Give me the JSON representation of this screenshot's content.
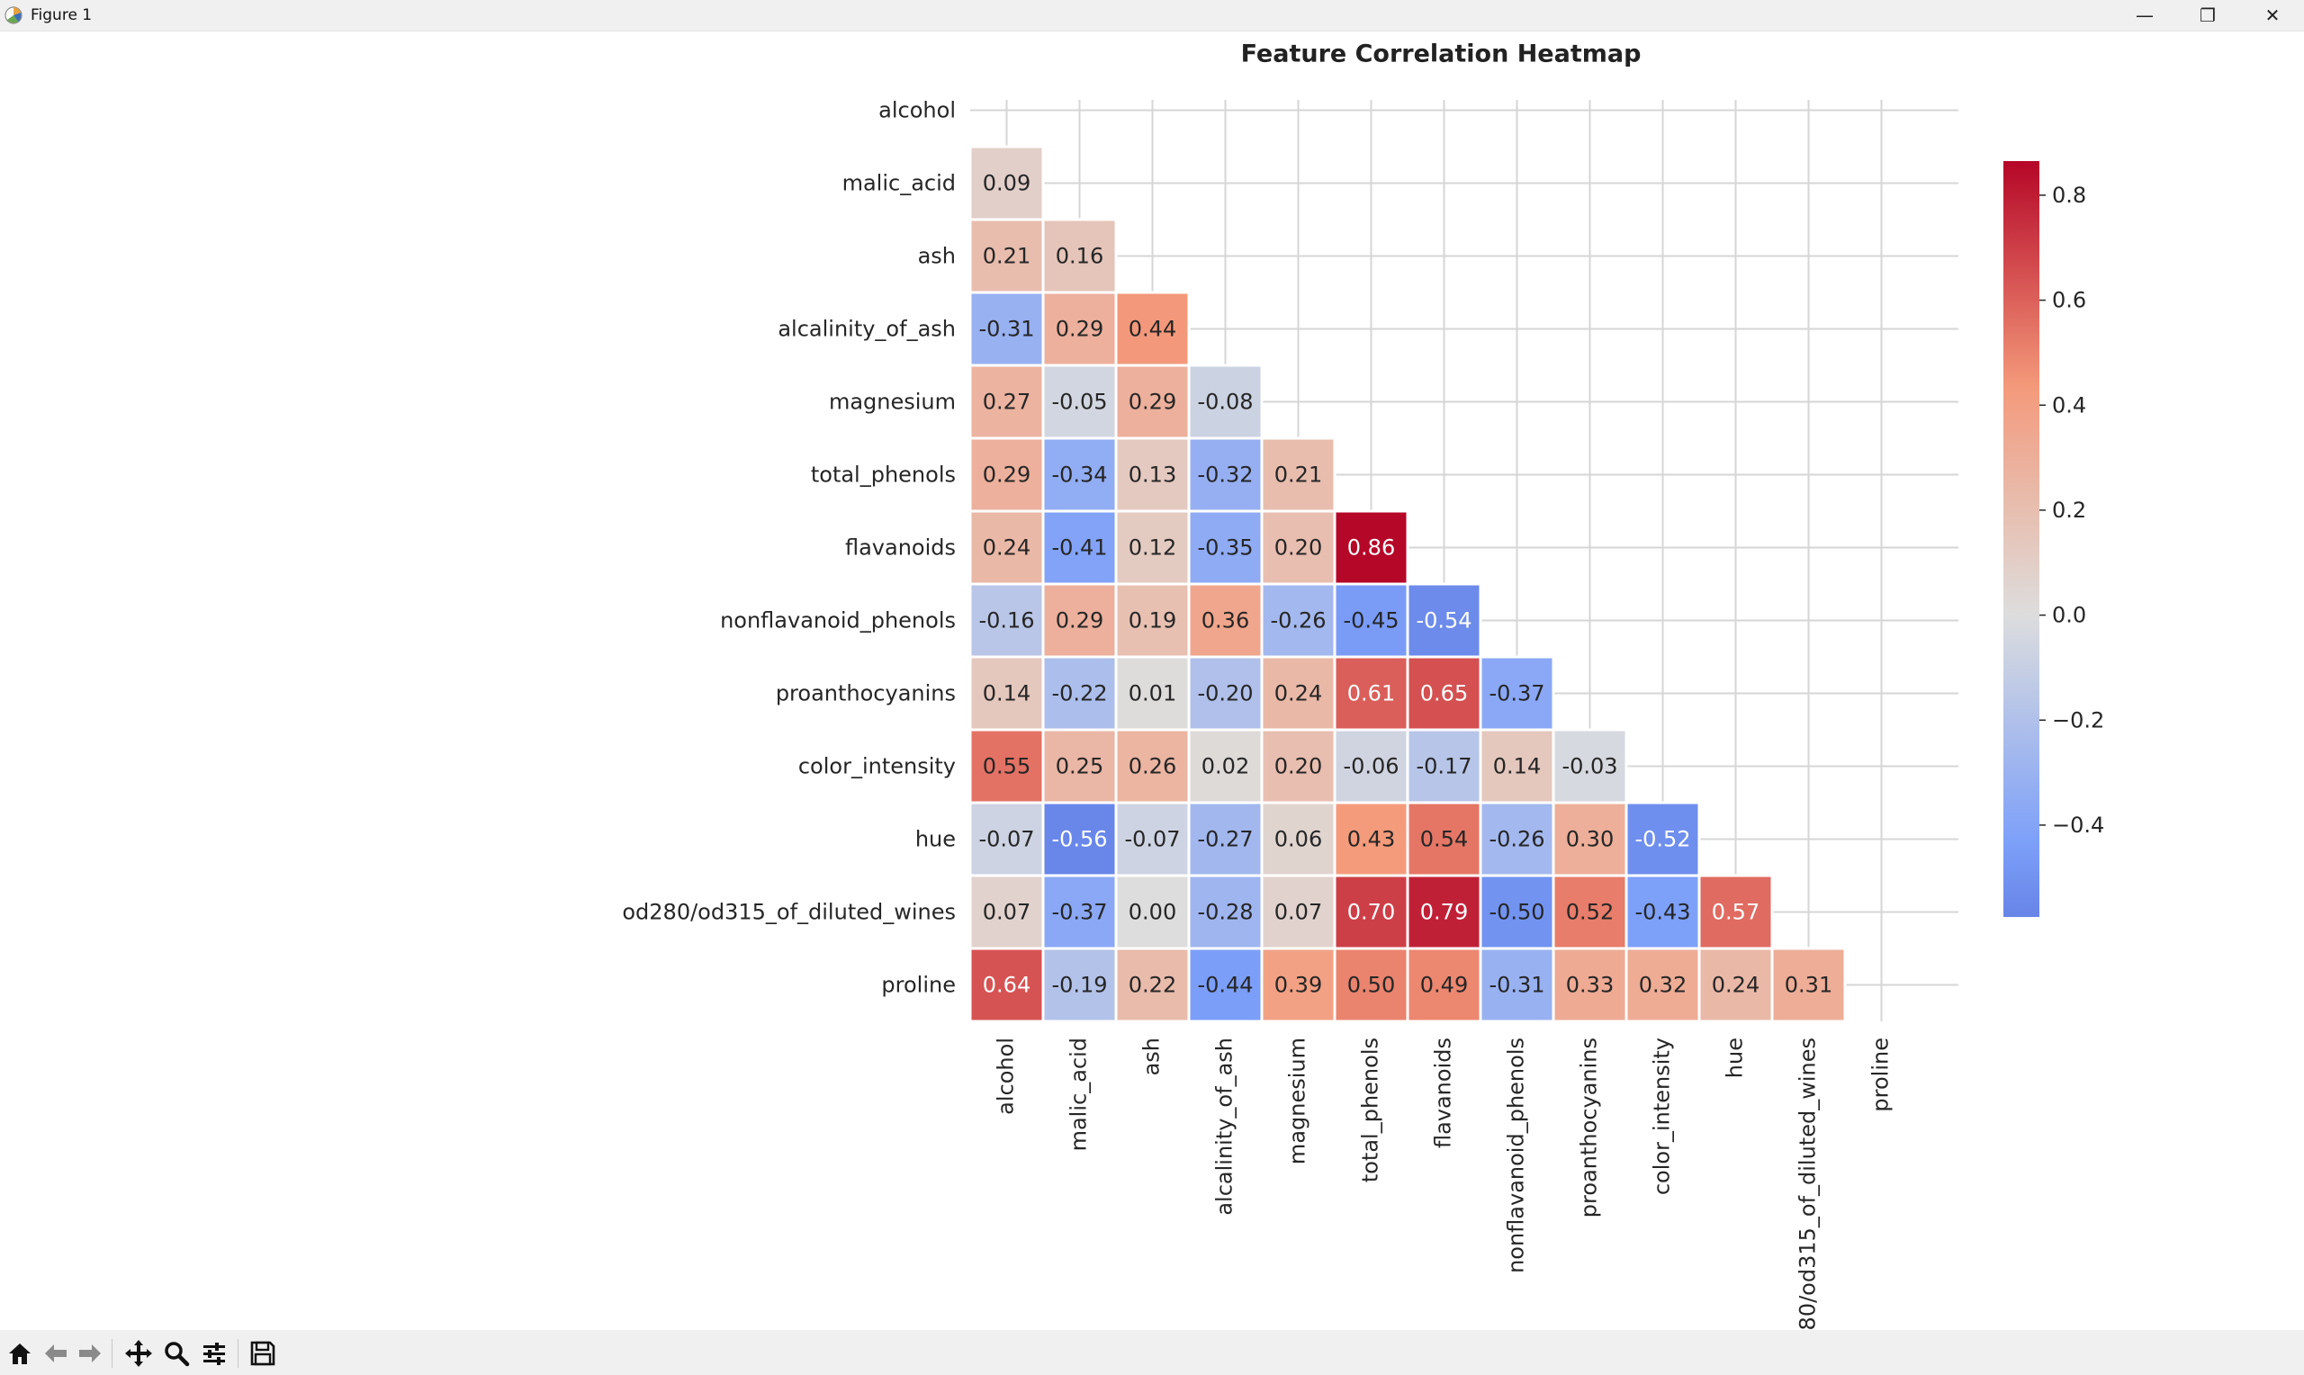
{
  "window": {
    "title": "Figure 1",
    "minimize_label": "—",
    "maximize_label": "❐",
    "close_label": "✕"
  },
  "toolbar": {
    "buttons": [
      "home-icon",
      "back-icon",
      "forward-icon",
      "pan-icon",
      "zoom-icon",
      "configure-icon",
      "save-icon"
    ]
  },
  "chart_data": {
    "type": "heatmap",
    "title": "Feature Correlation Heatmap",
    "mask": "upper-triangle-including-diagonal",
    "colormap": "coolwarm",
    "colors": {
      "low": "#3b4cc0",
      "mid": "#dddddd",
      "high": "#b40426"
    },
    "vmin": -0.57,
    "vmax": 0.87,
    "labels": [
      "alcohol",
      "malic_acid",
      "ash",
      "alcalinity_of_ash",
      "magnesium",
      "total_phenols",
      "flavanoids",
      "nonflavanoid_phenols",
      "proanthocyanins",
      "color_intensity",
      "hue",
      "od280/od315_of_diluted_wines",
      "proline"
    ],
    "matrix": [
      [],
      [
        0.09
      ],
      [
        0.21,
        0.16
      ],
      [
        -0.31,
        0.29,
        0.44
      ],
      [
        0.27,
        -0.05,
        0.29,
        -0.08
      ],
      [
        0.29,
        -0.34,
        0.13,
        -0.32,
        0.21
      ],
      [
        0.24,
        -0.41,
        0.12,
        -0.35,
        0.2,
        0.86
      ],
      [
        -0.16,
        0.29,
        0.19,
        0.36,
        -0.26,
        -0.45,
        -0.54
      ],
      [
        0.14,
        -0.22,
        0.01,
        -0.2,
        0.24,
        0.61,
        0.65,
        -0.37
      ],
      [
        0.55,
        0.25,
        0.26,
        0.02,
        0.2,
        -0.06,
        -0.17,
        0.14,
        -0.03
      ],
      [
        -0.07,
        -0.56,
        -0.07,
        -0.27,
        0.06,
        0.43,
        0.54,
        -0.26,
        0.3,
        -0.52
      ],
      [
        0.07,
        -0.37,
        0.0,
        -0.28,
        0.07,
        0.7,
        0.79,
        -0.5,
        0.52,
        -0.43,
        0.57
      ],
      [
        0.64,
        -0.19,
        0.22,
        -0.44,
        0.39,
        0.5,
        0.49,
        -0.31,
        0.33,
        0.32,
        0.24,
        0.31
      ]
    ],
    "colorbar": {
      "ticks": [
        0.8,
        0.6,
        0.4,
        0.2,
        0.0,
        -0.2,
        -0.4
      ],
      "tick_labels": [
        "0.8",
        "0.6",
        "0.4",
        "0.2",
        "0.0",
        "−0.2",
        "−0.4"
      ]
    }
  }
}
